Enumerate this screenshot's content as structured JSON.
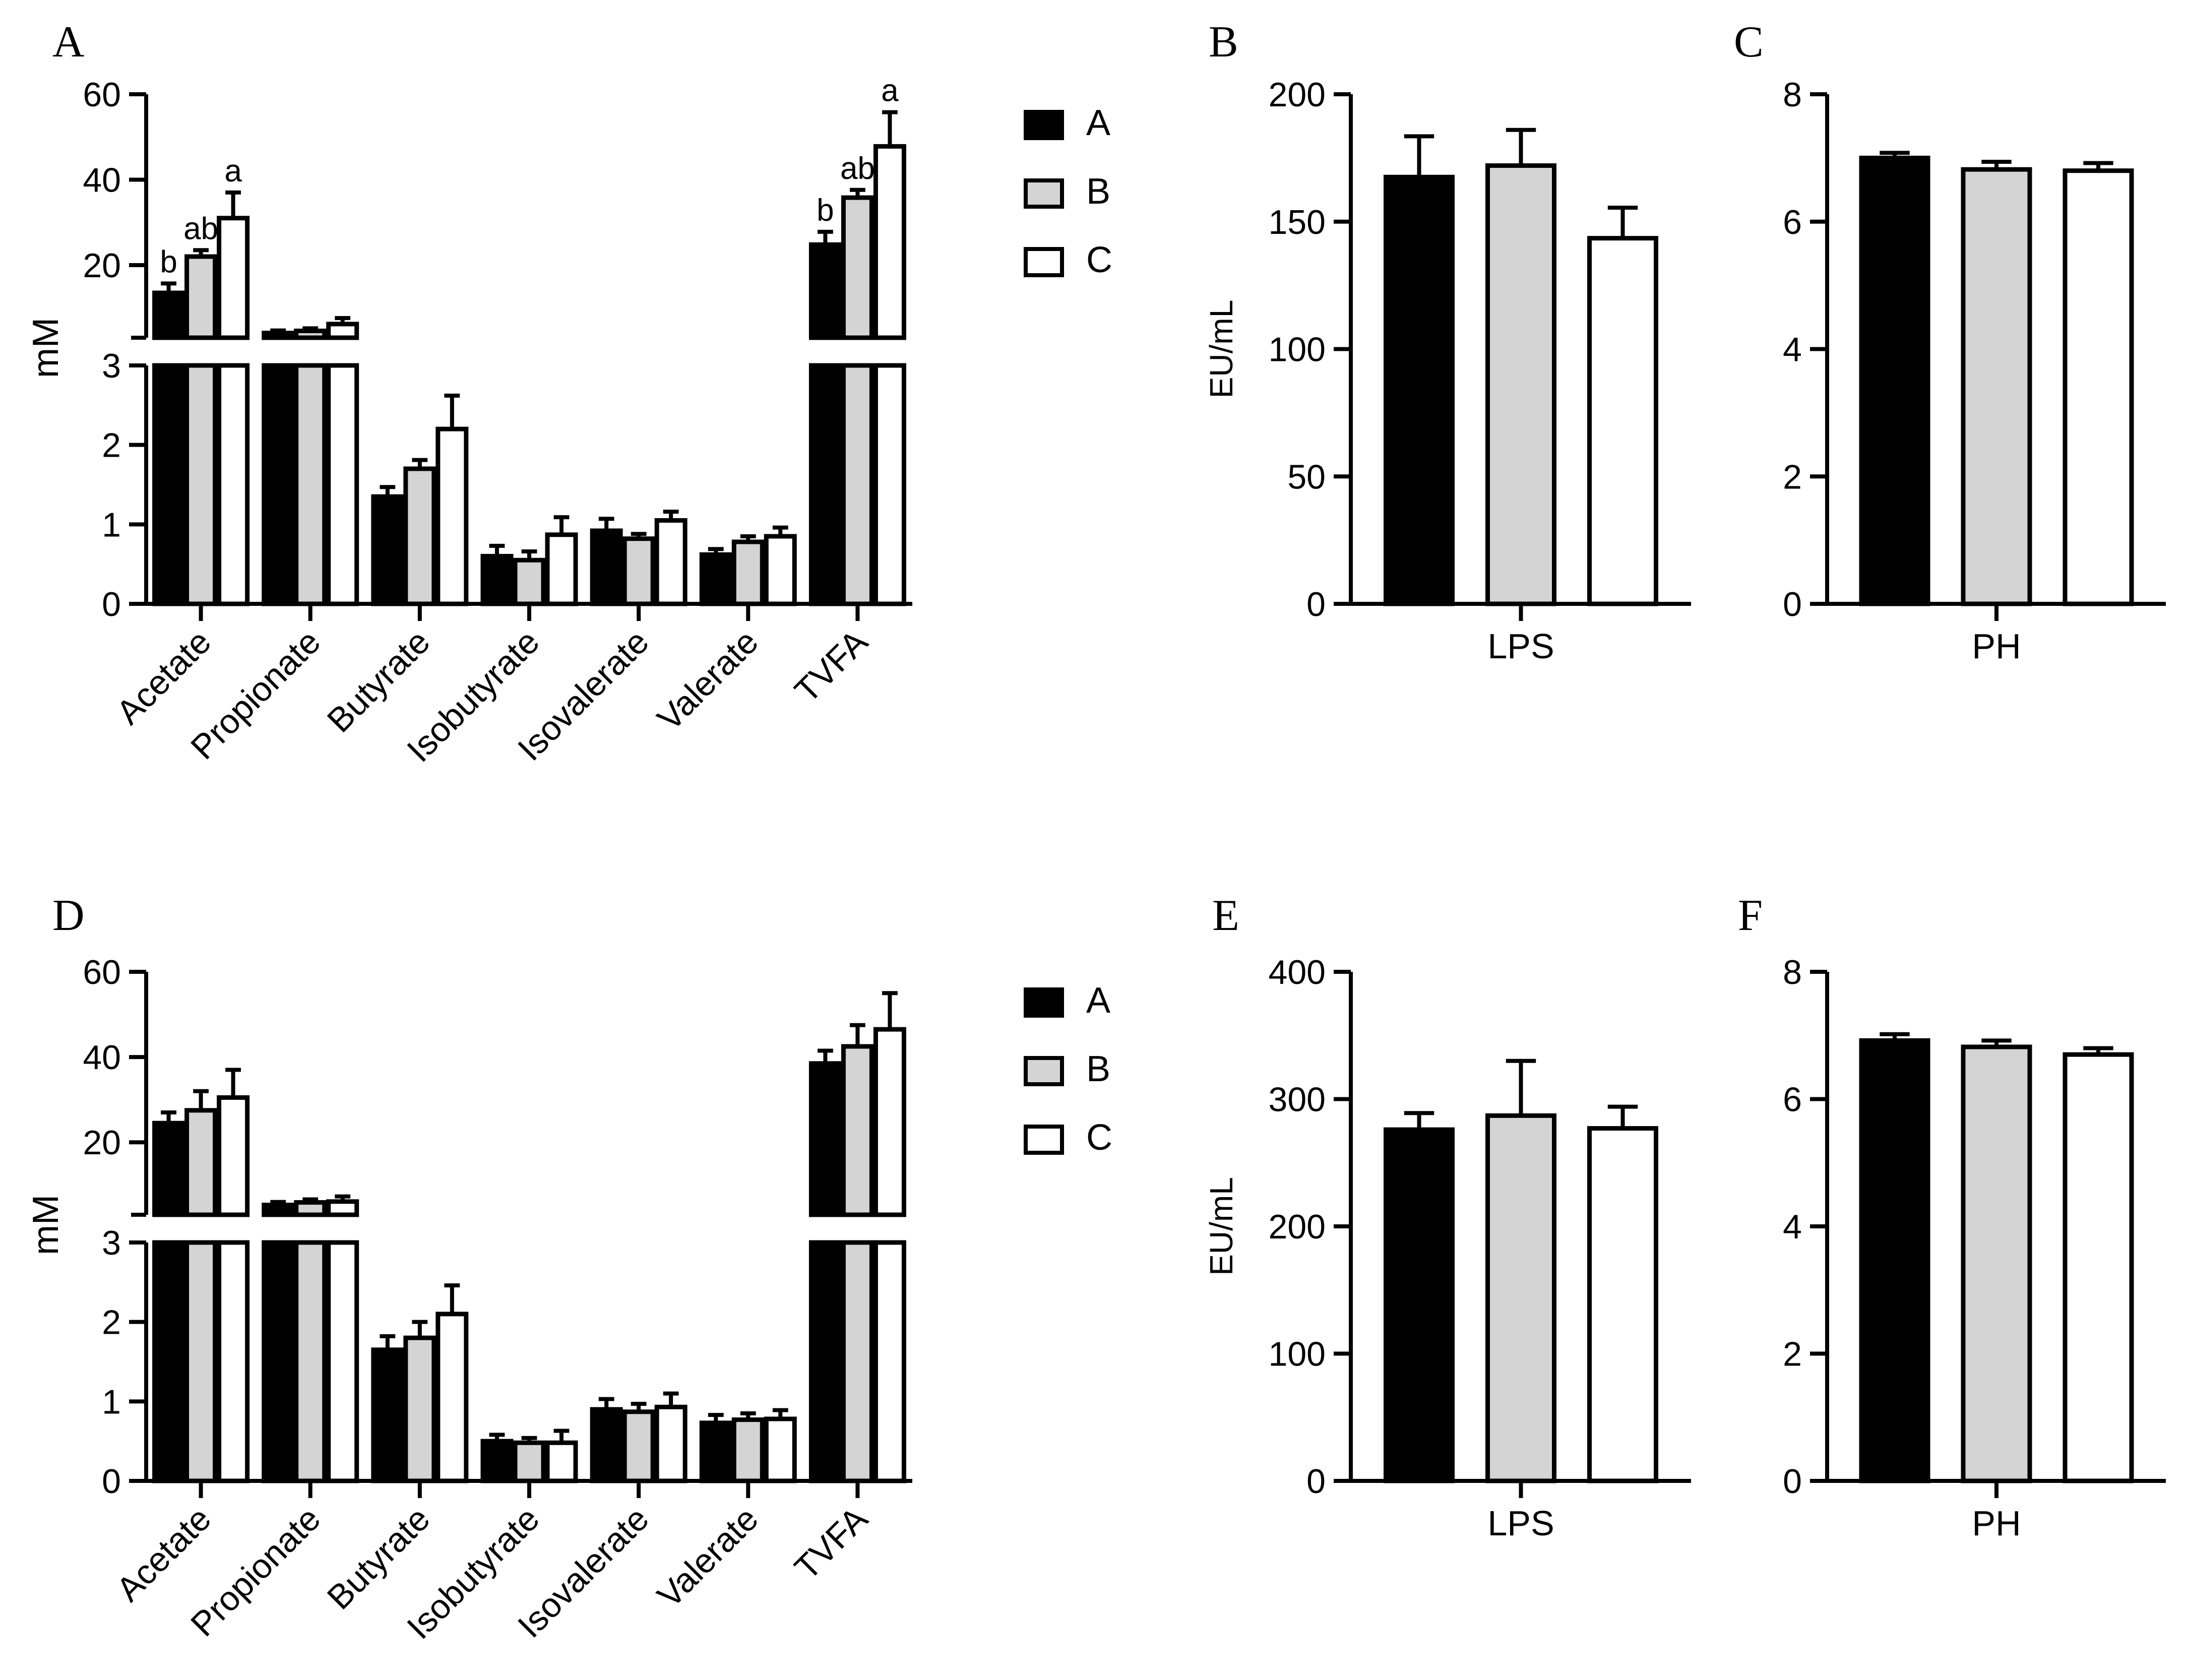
{
  "legend": [
    "A",
    "B",
    "C"
  ],
  "colors": {
    "A": "#000000",
    "B": "#d4d4d4",
    "C": "#ffffff",
    "stroke": "#000000"
  },
  "chart_data": [
    {
      "panel": "A",
      "type": "bar",
      "ylabel": "mM",
      "axis_break": {
        "lower": [
          0,
          3
        ],
        "upper": [
          3,
          60
        ]
      },
      "lower_ticks": [
        "0",
        "1",
        "2",
        "3"
      ],
      "upper_ticks": [
        "20",
        "40",
        "60"
      ],
      "categories": [
        "Acetate",
        "Propionate",
        "Butyrate",
        "Isobutyrate",
        "Isovalerate",
        "Valerate",
        "TVFA"
      ],
      "series": [
        {
          "name": "A",
          "values": [
            13.5,
            4.1,
            1.35,
            0.6,
            0.92,
            0.62,
            24.8
          ],
          "errors": [
            2.2,
            0.6,
            0.12,
            0.13,
            0.15,
            0.07,
            3.0
          ]
        },
        {
          "name": "B",
          "values": [
            22.0,
            4.6,
            1.7,
            0.55,
            0.82,
            0.78,
            35.8
          ],
          "errors": [
            1.5,
            0.6,
            0.11,
            0.11,
            0.06,
            0.07,
            1.8
          ]
        },
        {
          "name": "C",
          "values": [
            31.0,
            6.2,
            2.2,
            0.87,
            1.05,
            0.85,
            47.8
          ],
          "errors": [
            6.0,
            1.4,
            0.42,
            0.22,
            0.11,
            0.11,
            8.0
          ]
        }
      ],
      "annotations": [
        {
          "category": "Acetate",
          "series": "A",
          "text": "b"
        },
        {
          "category": "Acetate",
          "series": "B",
          "text": "ab"
        },
        {
          "category": "Acetate",
          "series": "C",
          "text": "a"
        },
        {
          "category": "TVFA",
          "series": "A",
          "text": "b"
        },
        {
          "category": "TVFA",
          "series": "B",
          "text": "ab"
        },
        {
          "category": "TVFA",
          "series": "C",
          "text": "a"
        }
      ]
    },
    {
      "panel": "B",
      "type": "bar",
      "ylabel": "EU/mL",
      "xlabel": "LPS",
      "ylim": [
        0,
        200
      ],
      "yticks": [
        "0",
        "50",
        "100",
        "150",
        "200"
      ],
      "series": [
        {
          "name": "A",
          "value": 167.5,
          "error": 16
        },
        {
          "name": "B",
          "value": 172,
          "error": 14
        },
        {
          "name": "C",
          "value": 143.5,
          "error": 12
        }
      ]
    },
    {
      "panel": "C",
      "type": "bar",
      "ylabel": "",
      "xlabel": "PH",
      "ylim": [
        0,
        8
      ],
      "yticks": [
        "0",
        "2",
        "4",
        "6",
        "8"
      ],
      "series": [
        {
          "name": "A",
          "value": 7.0,
          "error": 0.08
        },
        {
          "name": "B",
          "value": 6.82,
          "error": 0.12
        },
        {
          "name": "C",
          "value": 6.8,
          "error": 0.12
        }
      ]
    },
    {
      "panel": "D",
      "type": "bar",
      "ylabel": "mM",
      "axis_break": {
        "lower": [
          0,
          3
        ],
        "upper": [
          3,
          60
        ]
      },
      "lower_ticks": [
        "0",
        "1",
        "2",
        "3"
      ],
      "upper_ticks": [
        "20",
        "40",
        "60"
      ],
      "categories": [
        "Acetate",
        "Propionate",
        "Butyrate",
        "Isobutyrate",
        "Isovalerate",
        "Valerate",
        "TVFA"
      ],
      "series": [
        {
          "name": "A",
          "values": [
            24.5,
            5.3,
            1.65,
            0.5,
            0.9,
            0.73,
            38.5
          ],
          "errors": [
            2.5,
            0.7,
            0.17,
            0.08,
            0.13,
            0.1,
            3.0
          ]
        },
        {
          "name": "B",
          "values": [
            27.5,
            5.9,
            1.8,
            0.48,
            0.87,
            0.77,
            42.5
          ],
          "errors": [
            4.5,
            0.7,
            0.2,
            0.06,
            0.1,
            0.08,
            5.0
          ]
        },
        {
          "name": "C",
          "values": [
            30.5,
            6.1,
            2.1,
            0.48,
            0.93,
            0.78,
            46.5
          ],
          "errors": [
            6.5,
            1.2,
            0.36,
            0.15,
            0.17,
            0.11,
            8.5
          ]
        }
      ],
      "annotations": []
    },
    {
      "panel": "E",
      "type": "bar",
      "ylabel": "EU/mL",
      "xlabel": "LPS",
      "ylim": [
        0,
        400
      ],
      "yticks": [
        "0",
        "100",
        "200",
        "300",
        "400"
      ],
      "series": [
        {
          "name": "A",
          "value": 276,
          "error": 13
        },
        {
          "name": "B",
          "value": 287,
          "error": 43
        },
        {
          "name": "C",
          "value": 277,
          "error": 17
        }
      ]
    },
    {
      "panel": "F",
      "type": "bar",
      "ylabel": "",
      "xlabel": "PH",
      "ylim": [
        0,
        8
      ],
      "yticks": [
        "0",
        "2",
        "4",
        "6",
        "8"
      ],
      "series": [
        {
          "name": "A",
          "value": 6.92,
          "error": 0.1
        },
        {
          "name": "B",
          "value": 6.82,
          "error": 0.1
        },
        {
          "name": "C",
          "value": 6.7,
          "error": 0.1
        }
      ]
    }
  ]
}
